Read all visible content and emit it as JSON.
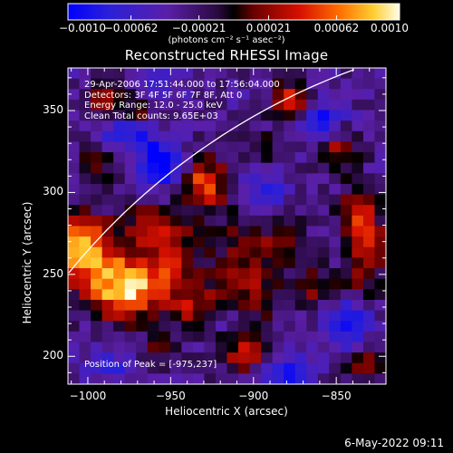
{
  "chart_data": {
    "type": "heatmap",
    "title": "Reconstructed RHESSI Image",
    "xlabel": "Heliocentric X (arcsec)",
    "ylabel": "Heliocentric Y (arcsec)",
    "xlim": [
      -1012,
      -820
    ],
    "ylim": [
      183,
      376
    ],
    "xticks": [
      -1000,
      -950,
      -900,
      -850
    ],
    "yticks": [
      200,
      250,
      300,
      350
    ],
    "xtick_labels": [
      "−1000",
      "−950",
      "−900",
      "−850"
    ],
    "ytick_labels": [
      "200",
      "250",
      "300",
      "350"
    ],
    "colorbar": {
      "range": [
        -0.001,
        0.001
      ],
      "ticks": [
        -0.001,
        -0.00062,
        -0.00021,
        0.00021,
        0.00062,
        0.001
      ],
      "tick_labels": [
        "−0.0010",
        "−0.00062",
        "−0.00021",
        "0.00021",
        "0.00062",
        "0.0010"
      ],
      "units": "(photons cm⁻² s⁻¹ asec⁻²)"
    },
    "annotations": [
      "29-Apr-2006 17:51:44.000 to 17:56:04.000",
      "Detectors: 3F 4F 5F 6F 7F 8F, Att 0",
      "Energy Range: 12.0 - 25.0 keV",
      "Clean     Total counts: 9.65E+03"
    ],
    "peak_label": "Position of Peak = [-975,237]",
    "peak": [
      -975,
      237
    ],
    "grid_cols": 28,
    "grid_rows": 30,
    "blobs": [
      {
        "x": -975,
        "y": 240,
        "sx": 14,
        "sy": 12,
        "a": 1.0
      },
      {
        "x": -1005,
        "y": 268,
        "sx": 10,
        "sy": 14,
        "a": 0.85
      },
      {
        "x": -990,
        "y": 255,
        "sx": 18,
        "sy": 18,
        "a": 0.55
      },
      {
        "x": -930,
        "y": 305,
        "sx": 10,
        "sy": 12,
        "a": 0.8
      },
      {
        "x": -948,
        "y": 258,
        "sx": 10,
        "sy": 14,
        "a": 0.65
      },
      {
        "x": -960,
        "y": 280,
        "sx": 12,
        "sy": 10,
        "a": 0.45
      },
      {
        "x": -935,
        "y": 230,
        "sx": 10,
        "sy": 10,
        "a": 0.5
      },
      {
        "x": -905,
        "y": 250,
        "sx": 14,
        "sy": 30,
        "a": 0.55
      },
      {
        "x": -877,
        "y": 355,
        "sx": 9,
        "sy": 9,
        "a": 0.75
      },
      {
        "x": -832,
        "y": 265,
        "sx": 8,
        "sy": 18,
        "a": 0.7
      },
      {
        "x": -850,
        "y": 325,
        "sx": 10,
        "sy": 10,
        "a": 0.55
      },
      {
        "x": -838,
        "y": 290,
        "sx": 8,
        "sy": 8,
        "a": 0.6
      },
      {
        "x": -905,
        "y": 205,
        "sx": 10,
        "sy": 10,
        "a": 0.55
      },
      {
        "x": -830,
        "y": 195,
        "sx": 10,
        "sy": 8,
        "a": 0.55
      },
      {
        "x": -988,
        "y": 355,
        "sx": 10,
        "sy": 8,
        "a": 0.55
      },
      {
        "x": -995,
        "y": 318,
        "sx": 8,
        "sy": 8,
        "a": 0.45
      },
      {
        "x": -968,
        "y": 348,
        "sx": 8,
        "sy": 8,
        "a": 0.4
      },
      {
        "x": -860,
        "y": 240,
        "sx": 10,
        "sy": 10,
        "a": 0.45
      },
      {
        "x": -958,
        "y": 205,
        "sx": 8,
        "sy": 8,
        "a": 0.35
      },
      {
        "x": -880,
        "y": 272,
        "sx": 8,
        "sy": 10,
        "a": 0.45
      },
      {
        "x": -895,
        "y": 325,
        "sx": 8,
        "sy": 8,
        "a": 0.35
      },
      {
        "x": -955,
        "y": 318,
        "sx": 9,
        "sy": 10,
        "a": -0.75
      },
      {
        "x": -975,
        "y": 335,
        "sx": 12,
        "sy": 8,
        "a": -0.6
      },
      {
        "x": -895,
        "y": 300,
        "sx": 10,
        "sy": 12,
        "a": -0.55
      },
      {
        "x": -860,
        "y": 345,
        "sx": 10,
        "sy": 10,
        "a": -0.6
      },
      {
        "x": -845,
        "y": 220,
        "sx": 10,
        "sy": 10,
        "a": -0.75
      },
      {
        "x": -880,
        "y": 190,
        "sx": 10,
        "sy": 8,
        "a": -0.55
      },
      {
        "x": -960,
        "y": 365,
        "sx": 10,
        "sy": 6,
        "a": -0.5
      },
      {
        "x": -912,
        "y": 220,
        "sx": 8,
        "sy": 8,
        "a": -0.5
      },
      {
        "x": -985,
        "y": 195,
        "sx": 10,
        "sy": 8,
        "a": -0.35
      }
    ],
    "limb": {
      "cx": -700,
      "cy": 0,
      "r": 400
    }
  },
  "footer_date": "6-May-2022 09:11"
}
